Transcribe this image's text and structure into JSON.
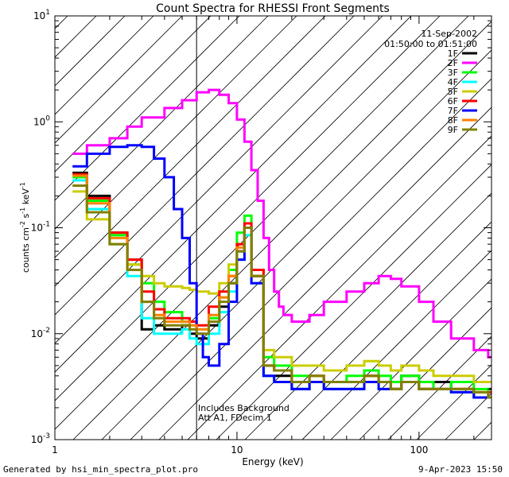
{
  "chart_data": {
    "type": "line",
    "title": "Count Spectra for RHESSI Front Segments",
    "xlabel": "Energy (keV)",
    "ylabel": "counts cm-2 s-1 keV-1",
    "ylabel_parts": {
      "base": "counts cm",
      "exp1": "-2",
      "mid": " s",
      "exp2": "-1",
      "tail": " keV",
      "exp3": "-1"
    },
    "xscale": "log",
    "yscale": "log",
    "xlim": [
      1,
      250
    ],
    "ylim": [
      0.001,
      10
    ],
    "x_tick_labels": [
      {
        "value": 1,
        "label": "1"
      },
      {
        "value": 10,
        "label": "10"
      },
      {
        "value": 100,
        "label": "100"
      }
    ],
    "y_tick_labels": [
      {
        "value": 0.001,
        "base": "10",
        "exp": "-3"
      },
      {
        "value": 0.01,
        "base": "10",
        "exp": "-2"
      },
      {
        "value": 0.1,
        "base": "10",
        "exp": "-1"
      },
      {
        "value": 1,
        "base": "10",
        "exp": "0"
      },
      {
        "value": 10,
        "base": "10",
        "exp": "1"
      }
    ],
    "date": "11-Sep-2002",
    "time_range": "01:50:00 to 01:51:00",
    "shaded_region": {
      "x_from": 1,
      "x_to": 6,
      "style": "diagonal-hatch"
    },
    "annotations": [
      "Includes Background",
      "Att A1, FDecim 1"
    ],
    "legend_position": "top-right",
    "series": [
      {
        "name": "1F",
        "color": "#000000",
        "x": [
          1.25,
          1.5,
          2,
          2.5,
          3,
          3.5,
          4,
          5,
          5.5,
          6,
          7,
          8,
          9,
          10,
          11,
          12,
          14,
          16,
          20,
          25,
          30,
          40,
          50,
          60,
          70,
          80,
          100,
          120,
          150,
          200,
          240
        ],
        "y": [
          0.33,
          0.2,
          0.09,
          0.05,
          0.011,
          0.012,
          0.011,
          0.012,
          0.01,
          0.009,
          0.012,
          0.018,
          0.03,
          0.06,
          0.1,
          0.035,
          0.004,
          0.004,
          0.003,
          0.0035,
          0.003,
          0.003,
          0.004,
          0.0035,
          0.003,
          0.004,
          0.003,
          0.0035,
          0.003,
          0.0025,
          0.003
        ]
      },
      {
        "name": "2F",
        "color": "#ff00ff",
        "x": [
          1.25,
          1.5,
          2,
          2.5,
          3,
          4,
          5,
          6,
          7,
          8,
          9,
          10,
          11,
          12,
          13,
          14,
          15,
          16,
          17,
          18,
          20,
          25,
          30,
          40,
          50,
          60,
          70,
          80,
          100,
          120,
          150,
          200,
          240
        ],
        "y": [
          0.5,
          0.6,
          0.7,
          0.9,
          1.1,
          1.35,
          1.6,
          1.9,
          2.0,
          1.8,
          1.5,
          1.05,
          0.65,
          0.35,
          0.18,
          0.08,
          0.04,
          0.025,
          0.018,
          0.015,
          0.013,
          0.015,
          0.02,
          0.025,
          0.03,
          0.035,
          0.033,
          0.028,
          0.02,
          0.013,
          0.009,
          0.007,
          0.006
        ]
      },
      {
        "name": "3F",
        "color": "#00ff00",
        "x": [
          1.25,
          1.5,
          2,
          2.5,
          3,
          3.5,
          4,
          5,
          5.5,
          6,
          7,
          8,
          9,
          10,
          11,
          12,
          14,
          16,
          20,
          25,
          30,
          40,
          50,
          60,
          70,
          80,
          100,
          120,
          150,
          200,
          240
        ],
        "y": [
          0.3,
          0.18,
          0.085,
          0.045,
          0.03,
          0.02,
          0.016,
          0.013,
          0.012,
          0.011,
          0.014,
          0.022,
          0.04,
          0.09,
          0.13,
          0.04,
          0.006,
          0.005,
          0.004,
          0.004,
          0.0035,
          0.004,
          0.0045,
          0.004,
          0.0035,
          0.004,
          0.0035,
          0.003,
          0.0035,
          0.003,
          0.0028
        ]
      },
      {
        "name": "4F",
        "color": "#00ffff",
        "x": [
          1.25,
          1.5,
          2,
          2.5,
          3,
          3.5,
          4,
          5,
          5.5,
          6,
          7,
          8,
          9,
          10,
          11,
          12,
          14,
          16,
          20,
          25,
          30,
          40,
          50,
          60,
          70,
          80,
          100,
          120,
          150,
          200,
          240
        ],
        "y": [
          0.28,
          0.15,
          0.07,
          0.035,
          0.014,
          0.01,
          0.01,
          0.011,
          0.009,
          0.008,
          0.01,
          0.016,
          0.025,
          0.05,
          0.085,
          0.03,
          0.004,
          0.0035,
          0.003,
          0.0035,
          0.003,
          0.003,
          0.0035,
          0.003,
          0.003,
          0.0035,
          0.003,
          0.003,
          0.0028,
          0.0025,
          0.0025
        ]
      },
      {
        "name": "5F",
        "color": "#cccc00",
        "x": [
          1.25,
          1.5,
          2,
          2.5,
          3,
          3.5,
          4,
          5,
          5.5,
          6,
          7,
          8,
          9,
          10,
          11,
          12,
          14,
          16,
          20,
          25,
          30,
          40,
          50,
          60,
          70,
          80,
          100,
          120,
          150,
          200,
          240
        ],
        "y": [
          0.22,
          0.12,
          0.07,
          0.045,
          0.035,
          0.03,
          0.028,
          0.027,
          0.026,
          0.025,
          0.024,
          0.03,
          0.045,
          0.07,
          0.1,
          0.04,
          0.007,
          0.006,
          0.005,
          0.005,
          0.0045,
          0.005,
          0.0055,
          0.005,
          0.0045,
          0.005,
          0.0045,
          0.004,
          0.004,
          0.0035,
          0.0035
        ]
      },
      {
        "name": "6F",
        "color": "#ff0000",
        "x": [
          1.25,
          1.5,
          2,
          2.5,
          3,
          3.5,
          4,
          5,
          5.5,
          6,
          7,
          8,
          9,
          10,
          11,
          12,
          14,
          16,
          20,
          25,
          30,
          40,
          50,
          60,
          70,
          80,
          100,
          120,
          150,
          200,
          240
        ],
        "y": [
          0.32,
          0.19,
          0.09,
          0.05,
          0.025,
          0.017,
          0.014,
          0.014,
          0.013,
          0.012,
          0.018,
          0.025,
          0.035,
          0.07,
          0.11,
          0.04,
          0.005,
          0.0045,
          0.0035,
          0.004,
          0.0035,
          0.0035,
          0.004,
          0.0035,
          0.003,
          0.0035,
          0.003,
          0.003,
          0.003,
          0.0028,
          0.0028
        ]
      },
      {
        "name": "7F",
        "color": "#0000ff",
        "x": [
          1.25,
          1.5,
          2,
          2.5,
          3,
          3.5,
          4,
          4.5,
          5,
          5.5,
          6,
          6.5,
          7,
          8,
          9,
          10,
          11,
          12,
          14,
          16,
          20,
          25,
          30,
          40,
          50,
          60,
          70,
          80,
          100,
          120,
          150,
          200,
          240
        ],
        "y": [
          0.38,
          0.5,
          0.58,
          0.6,
          0.58,
          0.45,
          0.3,
          0.15,
          0.08,
          0.03,
          0.01,
          0.006,
          0.005,
          0.008,
          0.02,
          0.05,
          0.1,
          0.03,
          0.004,
          0.0035,
          0.003,
          0.0035,
          0.003,
          0.003,
          0.0035,
          0.003,
          0.003,
          0.0035,
          0.003,
          0.003,
          0.0028,
          0.0025,
          0.0025
        ]
      },
      {
        "name": "8F",
        "color": "#ff8000",
        "x": [
          1.25,
          1.5,
          2,
          2.5,
          3,
          3.5,
          4,
          5,
          5.5,
          6,
          7,
          8,
          9,
          10,
          11,
          12,
          14,
          16,
          20,
          25,
          30,
          40,
          50,
          60,
          70,
          80,
          100,
          120,
          150,
          200,
          240
        ],
        "y": [
          0.31,
          0.17,
          0.08,
          0.04,
          0.02,
          0.015,
          0.013,
          0.013,
          0.012,
          0.011,
          0.015,
          0.022,
          0.035,
          0.065,
          0.1,
          0.035,
          0.005,
          0.0045,
          0.0035,
          0.004,
          0.0035,
          0.0035,
          0.004,
          0.0035,
          0.003,
          0.0035,
          0.003,
          0.003,
          0.003,
          0.0028,
          0.0025
        ]
      },
      {
        "name": "9F",
        "color": "#808000",
        "x": [
          1.25,
          1.5,
          2,
          2.5,
          3,
          3.5,
          4,
          5,
          5.5,
          6,
          7,
          8,
          9,
          10,
          11,
          12,
          14,
          16,
          20,
          25,
          30,
          40,
          50,
          60,
          70,
          80,
          100,
          120,
          150,
          200,
          240
        ],
        "y": [
          0.25,
          0.14,
          0.07,
          0.04,
          0.02,
          0.014,
          0.012,
          0.012,
          0.011,
          0.01,
          0.013,
          0.02,
          0.03,
          0.06,
          0.1,
          0.035,
          0.005,
          0.0045,
          0.0035,
          0.004,
          0.0035,
          0.0035,
          0.004,
          0.0035,
          0.003,
          0.0035,
          0.003,
          0.003,
          0.003,
          0.0028,
          0.0025
        ]
      }
    ]
  },
  "footer": {
    "left": "Generated by hsi_min_spectra_plot.pro",
    "right": "9-Apr-2023 15:50"
  }
}
